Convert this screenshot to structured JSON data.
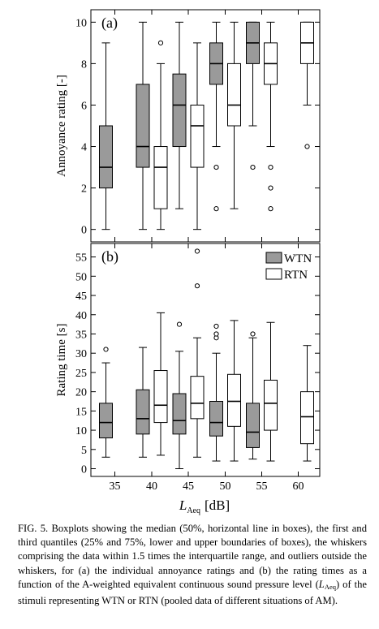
{
  "chart_data": [
    {
      "type": "boxplot",
      "panel_label": "(a)",
      "ylabel": "Annoyance rating [-]",
      "ylim": [
        -0.6,
        10.6
      ],
      "yticks": [
        0,
        2,
        4,
        6,
        8,
        10
      ],
      "x_positions": [
        35,
        40,
        45,
        50,
        55,
        60
      ],
      "series": [
        {
          "name": "WTN",
          "color": "#9a9a9a",
          "boxes": [
            {
              "x": 35,
              "whisker_low": 0,
              "q1": 2,
              "median": 3,
              "q3": 5,
              "whisker_high": 9,
              "outliers": []
            },
            {
              "x": 40,
              "whisker_low": 0,
              "q1": 3,
              "median": 4,
              "q3": 7,
              "whisker_high": 10,
              "outliers": []
            },
            {
              "x": 45,
              "whisker_low": 1,
              "q1": 4,
              "median": 6,
              "q3": 7.5,
              "whisker_high": 10,
              "outliers": []
            },
            {
              "x": 50,
              "whisker_low": 4,
              "q1": 7,
              "median": 8,
              "q3": 9,
              "whisker_high": 10,
              "outliers": [
                1,
                3
              ]
            },
            {
              "x": 55,
              "whisker_low": 5,
              "q1": 8,
              "median": 9,
              "q3": 10,
              "whisker_high": 10,
              "outliers": [
                3
              ]
            }
          ]
        },
        {
          "name": "RTN",
          "color": "#ffffff",
          "boxes": [
            {
              "x": 40,
              "whisker_low": 0,
              "q1": 1,
              "median": 3,
              "q3": 4,
              "whisker_high": 8,
              "outliers": [
                9
              ]
            },
            {
              "x": 45,
              "whisker_low": 0,
              "q1": 3,
              "median": 5,
              "q3": 6,
              "whisker_high": 9,
              "outliers": []
            },
            {
              "x": 50,
              "whisker_low": 1,
              "q1": 5,
              "median": 6,
              "q3": 8,
              "whisker_high": 10,
              "outliers": []
            },
            {
              "x": 55,
              "whisker_low": 4,
              "q1": 7,
              "median": 8,
              "q3": 9,
              "whisker_high": 10,
              "outliers": [
                1,
                2,
                3
              ]
            },
            {
              "x": 60,
              "whisker_low": 6,
              "q1": 8,
              "median": 9,
              "q3": 10,
              "whisker_high": 10,
              "outliers": [
                4
              ]
            }
          ]
        }
      ]
    },
    {
      "type": "boxplot",
      "panel_label": "(b)",
      "ylabel": "Rating time [s]",
      "xlabel_main": "L",
      "xlabel_sub": "Aeq",
      "xlabel_unit": "[dB]",
      "ylim": [
        -2,
        58.5
      ],
      "yticks": [
        0,
        5,
        10,
        15,
        20,
        25,
        30,
        35,
        40,
        45,
        50,
        55
      ],
      "x_positions": [
        35,
        40,
        45,
        50,
        55,
        60
      ],
      "xticks": [
        "35",
        "40",
        "45",
        "50",
        "55",
        "60"
      ],
      "legend": {
        "position": "top-right",
        "entries": [
          "WTN",
          "RTN"
        ]
      },
      "series": [
        {
          "name": "WTN",
          "color": "#9a9a9a",
          "boxes": [
            {
              "x": 35,
              "whisker_low": 3,
              "q1": 8,
              "median": 12,
              "q3": 17,
              "whisker_high": 27.5,
              "outliers": [
                31
              ]
            },
            {
              "x": 40,
              "whisker_low": 3,
              "q1": 9,
              "median": 13,
              "q3": 20.5,
              "whisker_high": 31.5,
              "outliers": []
            },
            {
              "x": 45,
              "whisker_low": 0,
              "q1": 9,
              "median": 12.5,
              "q3": 19.5,
              "whisker_high": 30.5,
              "outliers": [
                37.5
              ]
            },
            {
              "x": 50,
              "whisker_low": 2,
              "q1": 8.5,
              "median": 12,
              "q3": 17.5,
              "whisker_high": 30,
              "outliers": [
                34,
                35,
                37
              ]
            },
            {
              "x": 55,
              "whisker_low": 2.5,
              "q1": 5.5,
              "median": 9.5,
              "q3": 17,
              "whisker_high": 34,
              "outliers": [
                35
              ]
            }
          ]
        },
        {
          "name": "RTN",
          "color": "#ffffff",
          "boxes": [
            {
              "x": 40,
              "whisker_low": 3.5,
              "q1": 12,
              "median": 16.5,
              "q3": 25.5,
              "whisker_high": 40.5,
              "outliers": []
            },
            {
              "x": 45,
              "whisker_low": 3,
              "q1": 13,
              "median": 17,
              "q3": 24,
              "whisker_high": 34,
              "outliers": [
                47.5,
                56.5
              ]
            },
            {
              "x": 50,
              "whisker_low": 2,
              "q1": 11,
              "median": 17.5,
              "q3": 24.5,
              "whisker_high": 38.5,
              "outliers": []
            },
            {
              "x": 55,
              "whisker_low": 2,
              "q1": 10,
              "median": 17,
              "q3": 23,
              "whisker_high": 38,
              "outliers": []
            },
            {
              "x": 60,
              "whisker_low": 2,
              "q1": 6.5,
              "median": 13.5,
              "q3": 20,
              "whisker_high": 32,
              "outliers": []
            }
          ]
        }
      ]
    }
  ],
  "caption": {
    "lead": "FIG. 5. Boxplots showing the median (50%, horizontal line in boxes), the first and third quantiles (25% and 75%, lower and upper boundaries of boxes), the whiskers comprising the data within 1.5 times the interquartile range, and outliers outside the whiskers, for (a) the individual annoyance ratings and (b) the rating times as a function of the A-weighted equivalent continuous sound pressure level (",
    "sym": "L",
    "sub": "Aeq",
    "tail": ") of the stimuli representing WTN or RTN (pooled data of different situations of AM)."
  }
}
